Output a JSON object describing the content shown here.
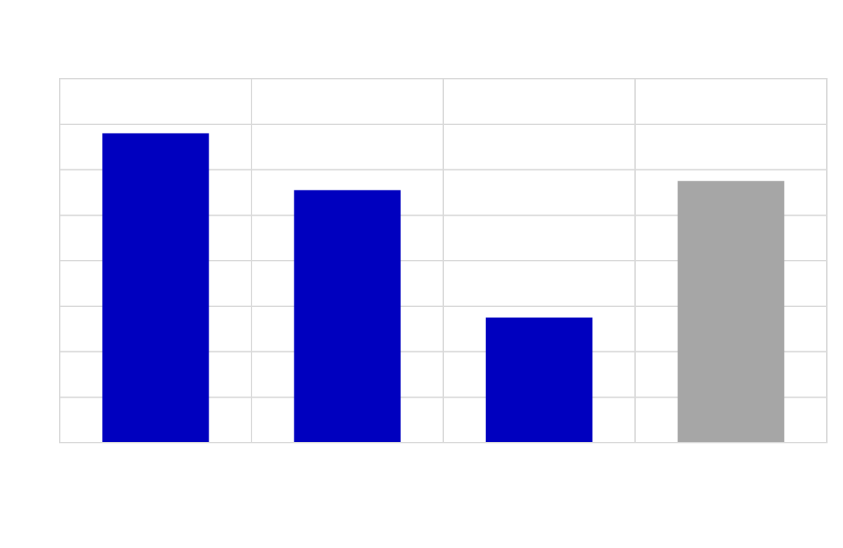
{
  "chart_data": {
    "type": "bar",
    "categories": [
      "",
      "",
      "",
      ""
    ],
    "values": [
      6.8,
      5.55,
      2.75,
      5.75
    ],
    "bar_colors": [
      "#0000bf",
      "#0000bf",
      "#0000bf",
      "#a6a6a6"
    ],
    "ylim": [
      0,
      8
    ],
    "y_grid_step": 1,
    "grid": true,
    "title": "",
    "xlabel": "",
    "ylabel": "",
    "colors": {
      "primary_bar": "#0000bf",
      "highlight_bar": "#a6a6a6",
      "grid": "#d9d9d9",
      "background": "#ffffff"
    }
  }
}
